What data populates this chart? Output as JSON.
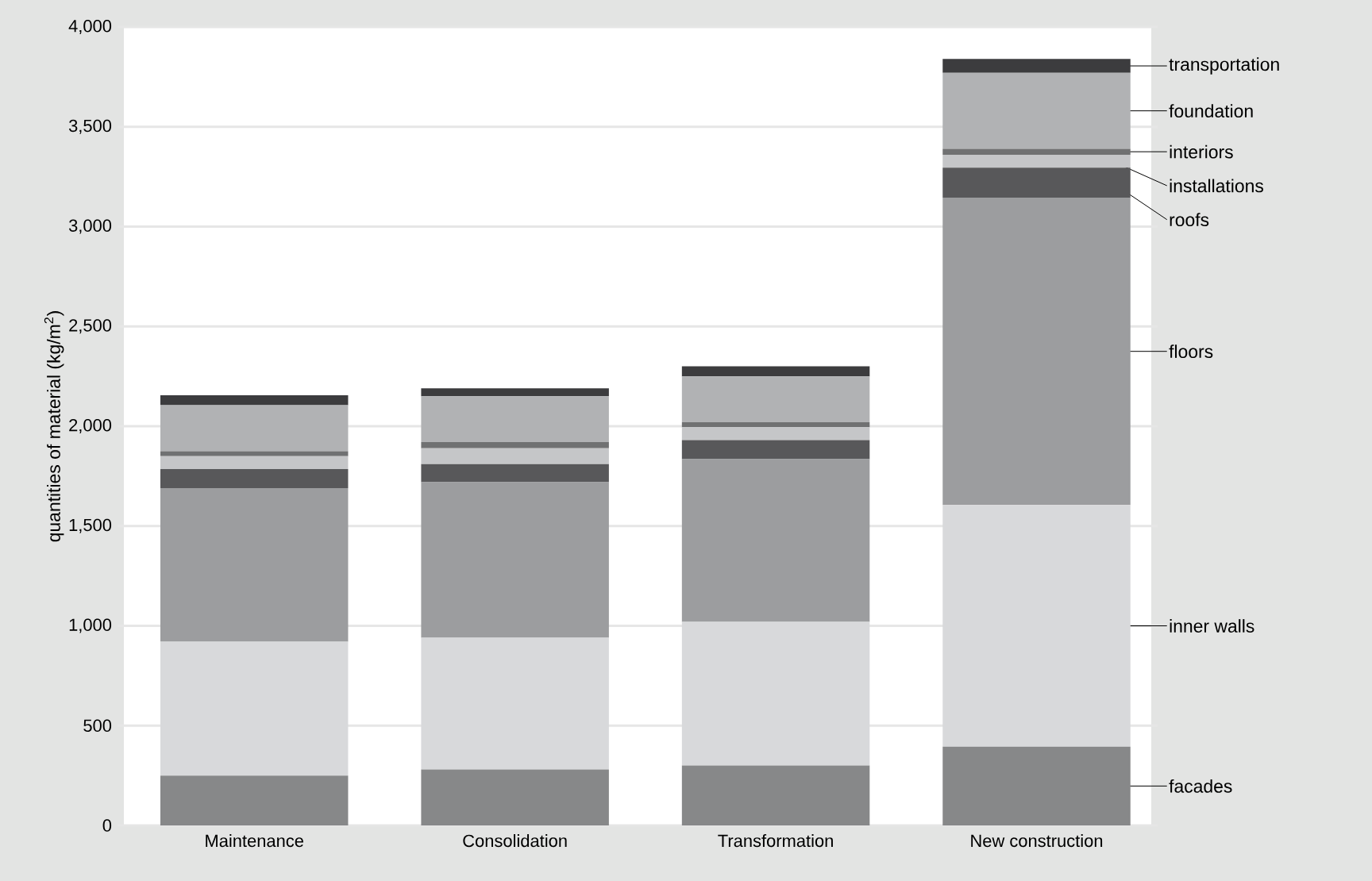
{
  "chart_data": {
    "type": "bar",
    "stacked": true,
    "grid": "y",
    "ylabel": "quantities of material (kg/m$^{2}$)",
    "categories": [
      "Maintenance",
      "Consolidation",
      "Transformation",
      "New construction"
    ],
    "series": [
      {
        "name": "facades",
        "color": "#878889",
        "values": [
          250,
          280,
          300,
          395
        ]
      },
      {
        "name": "inner walls",
        "color": "#d8d9db",
        "values": [
          670,
          660,
          720,
          1210
        ]
      },
      {
        "name": "floors",
        "color": "#9c9d9f",
        "values": [
          770,
          780,
          815,
          1540
        ]
      },
      {
        "name": "roofs",
        "color": "#58585a",
        "values": [
          95,
          90,
          95,
          150
        ]
      },
      {
        "name": "installations",
        "color": "#c5c6c8",
        "values": [
          65,
          80,
          65,
          65
        ]
      },
      {
        "name": "interiors",
        "color": "#707172",
        "values": [
          25,
          30,
          25,
          30
        ]
      },
      {
        "name": "foundation",
        "color": "#b1b2b4",
        "values": [
          230,
          230,
          230,
          380
        ]
      },
      {
        "name": "transportation",
        "color": "#3c3c3e",
        "values": [
          50,
          40,
          50,
          70
        ]
      }
    ],
    "ylim": [
      0,
      4000
    ],
    "yticks": [
      0,
      500,
      {
        "value": 1000,
        "label": "1,000"
      },
      {
        "value": 1500,
        "label": "1,500"
      },
      {
        "value": 2000,
        "label": "2,000"
      },
      {
        "value": 2500,
        "label": "2,500"
      },
      {
        "value": 3000,
        "label": "3,000"
      },
      {
        "value": 3500,
        "label": "3,500"
      },
      {
        "value": 4000,
        "label": "4,000"
      }
    ]
  }
}
